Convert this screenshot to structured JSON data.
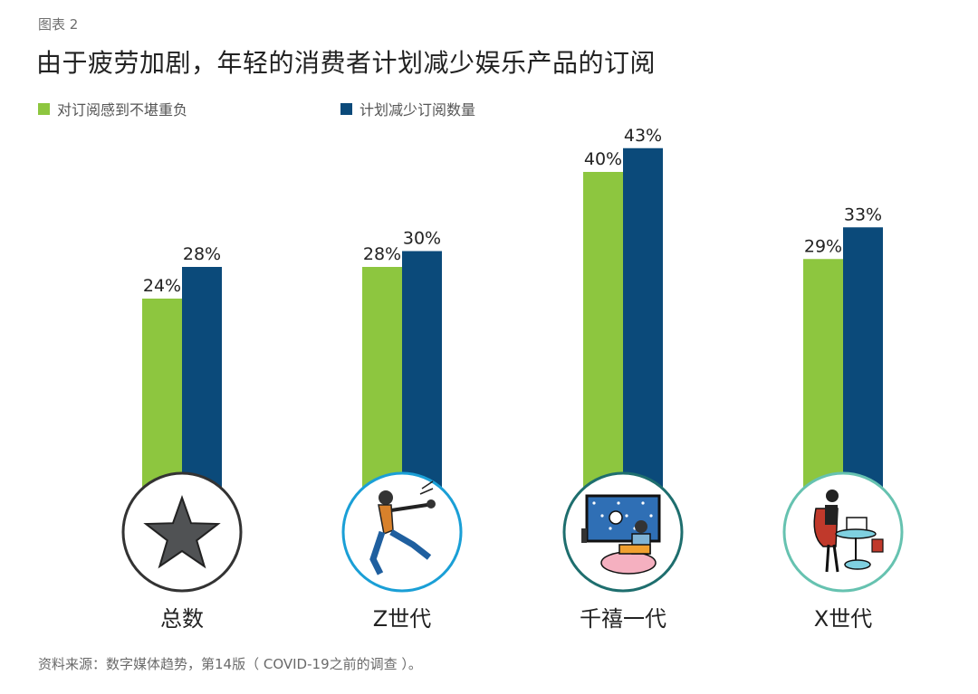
{
  "figure_label": "图表 2",
  "source": "资料来源：数字媒体趋势，第14版（ COVID-19之前的调查 ）。",
  "colors": {
    "green": "#8dc63f",
    "navy": "#0b4a7a"
  },
  "chart_data": {
    "type": "bar",
    "title": "由于疲劳加剧，年轻的消费者计划减少娱乐产品的订阅",
    "categories": [
      "总数",
      "Z世代",
      "千禧一代",
      "X世代"
    ],
    "category_icons": [
      "star-icon",
      "dancing-person-icon",
      "gamer-couple-icon",
      "woman-at-laptop-icon"
    ],
    "circle_colors": [
      "#333333",
      "#1a9fd6",
      "#1e6e6e",
      "#66c2b0"
    ],
    "series": [
      {
        "name": "对订阅感到不堪重负",
        "values": [
          24,
          28,
          40,
          29
        ],
        "labels": [
          "24%",
          "28%",
          "40%",
          "29%"
        ],
        "color": "#8dc63f"
      },
      {
        "name": "计划减少订阅数量",
        "values": [
          28,
          30,
          43,
          33
        ],
        "labels": [
          "28%",
          "30%",
          "43%",
          "33%"
        ],
        "color": "#0b4a7a"
      }
    ],
    "ylim": [
      0,
      50
    ],
    "legend_position": "top-left",
    "grid": false
  }
}
